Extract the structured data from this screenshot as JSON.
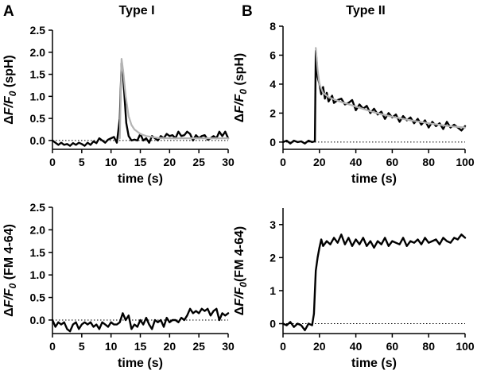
{
  "figure": {
    "panel_a_label": "A",
    "panel_b_label": "B",
    "title_left": "Type I",
    "title_right": "Type II"
  },
  "colors": {
    "trace": "#000000",
    "fit": "#b3b3b3",
    "axis": "#000000"
  },
  "chart_data": [
    {
      "id": "a-top",
      "type": "line",
      "xlabel": "time (s)",
      "ylabel": [
        "ΔF/F",
        "0",
        " (spH)"
      ],
      "xlim": [
        0,
        30
      ],
      "ylim": [
        -0.2,
        2.5
      ],
      "xticks": [
        0,
        5,
        10,
        15,
        20,
        25,
        30
      ],
      "yticks": [
        0.0,
        0.5,
        1.0,
        1.5,
        2.0,
        2.5
      ],
      "ytick_labels": [
        "0.0",
        "0.5",
        "1.0",
        "1.5",
        "2.0",
        "2.5"
      ],
      "baseline": 0,
      "series": [
        {
          "kind": "trace",
          "x": [
            0,
            0.5,
            1,
            1.5,
            2,
            2.5,
            3,
            3.5,
            4,
            4.5,
            5,
            5.5,
            6,
            6.5,
            7,
            7.5,
            8,
            8.5,
            9,
            9.5,
            10,
            10.5,
            11,
            11.5,
            11.8,
            12,
            12.3,
            12.6,
            13,
            13.5,
            14,
            14.5,
            15,
            15.5,
            16,
            16.5,
            17,
            17.5,
            18,
            18.5,
            19,
            19.5,
            20,
            20.5,
            21,
            21.5,
            22,
            22.5,
            23,
            23.5,
            24,
            24.5,
            25,
            25.5,
            26,
            26.5,
            27,
            27.5,
            28,
            28.5,
            29,
            29.5,
            30
          ],
          "y": [
            0,
            -0.05,
            -0.1,
            -0.05,
            -0.1,
            -0.08,
            -0.12,
            -0.06,
            -0.1,
            -0.05,
            -0.08,
            -0.12,
            -0.05,
            -0.1,
            -0.02,
            -0.06,
            0.05,
            0,
            -0.05,
            0.02,
            0.05,
            0.08,
            -0.05,
            0.5,
            1.75,
            1.6,
            1.0,
            0.4,
            0.1,
            0,
            0.02,
            0,
            0.15,
            0,
            0.05,
            -0.05,
            0.1,
            0.05,
            0,
            0.1,
            0.05,
            0.15,
            0.1,
            0.12,
            0.05,
            0.2,
            0.1,
            0.12,
            0.2,
            0.15,
            0,
            0.12,
            0.05,
            0.1,
            0.12,
            0.02,
            0.05,
            0.1,
            0.05,
            0.2,
            0.1,
            0.2,
            0.05
          ]
        },
        {
          "kind": "fit",
          "x": [
            11.5,
            11.8,
            12.1,
            12.5,
            13,
            13.5,
            14,
            15,
            16,
            18,
            20,
            24,
            30
          ],
          "y": [
            0.05,
            1.85,
            1.55,
            1.0,
            0.55,
            0.35,
            0.25,
            0.15,
            0.1,
            0.06,
            0.05,
            0.05,
            0.05
          ]
        }
      ]
    },
    {
      "id": "b-top",
      "type": "line",
      "xlabel": "time (s)",
      "ylabel": [
        "ΔF/F",
        "0",
        " (spH)"
      ],
      "xlim": [
        0,
        100
      ],
      "ylim": [
        -0.5,
        8
      ],
      "xticks": [
        0,
        20,
        40,
        60,
        80,
        100
      ],
      "yticks": [
        0,
        2,
        4,
        6,
        8
      ],
      "ytick_labels": [
        "0",
        "2",
        "4",
        "6",
        "8"
      ],
      "baseline": 0,
      "series": [
        {
          "kind": "trace",
          "x": [
            0,
            2,
            4,
            6,
            8,
            10,
            12,
            14,
            16,
            17.5,
            18,
            18.5,
            19,
            20,
            21,
            22,
            23,
            24,
            25,
            26,
            27,
            28,
            30,
            32,
            34,
            36,
            38,
            40,
            42,
            44,
            46,
            48,
            50,
            52,
            54,
            56,
            58,
            60,
            62,
            64,
            66,
            68,
            70,
            72,
            74,
            76,
            78,
            80,
            82,
            84,
            86,
            88,
            90,
            92,
            94,
            96,
            98,
            100
          ],
          "y": [
            0,
            0.1,
            -0.1,
            0.1,
            0,
            0.05,
            -0.1,
            0.1,
            0,
            0.05,
            6.3,
            5.5,
            4.5,
            4.0,
            3.3,
            3.8,
            3.0,
            3.4,
            2.8,
            3.0,
            3.2,
            2.7,
            2.9,
            3.0,
            2.6,
            2.7,
            2.9,
            2.2,
            2.6,
            2.3,
            2.5,
            2.0,
            2.3,
            1.9,
            2.1,
            1.6,
            2.0,
            1.7,
            1.9,
            1.4,
            1.8,
            1.5,
            1.7,
            1.3,
            1.6,
            1.2,
            1.5,
            1.0,
            1.4,
            1.1,
            1.3,
            0.9,
            1.4,
            1.0,
            1.2,
            1.0,
            0.8,
            1.1
          ]
        },
        {
          "kind": "fit",
          "x": [
            18,
            19,
            20,
            22,
            25,
            30,
            35,
            40,
            50,
            60,
            70,
            80,
            90,
            100
          ],
          "y": [
            6.5,
            5.0,
            4.0,
            3.4,
            3.1,
            2.85,
            2.65,
            2.45,
            2.05,
            1.75,
            1.5,
            1.3,
            1.12,
            1.0
          ]
        }
      ]
    },
    {
      "id": "a-bottom",
      "type": "line",
      "xlabel": "time (s)",
      "ylabel": [
        "ΔF/F",
        "0",
        " (FM 4-64)"
      ],
      "xlim": [
        0,
        30
      ],
      "ylim": [
        -0.3,
        2.5
      ],
      "xticks": [
        0,
        5,
        10,
        15,
        20,
        25,
        30
      ],
      "yticks": [
        0.0,
        0.5,
        1.0,
        1.5,
        2.0,
        2.5
      ],
      "ytick_labels": [
        "0.0",
        "0.5",
        "1.0",
        "1.5",
        "2.0",
        "2.5"
      ],
      "baseline": 0,
      "series": [
        {
          "kind": "trace",
          "x": [
            0,
            0.5,
            1,
            1.5,
            2,
            2.5,
            3,
            3.5,
            4,
            4.5,
            5,
            5.5,
            6,
            6.5,
            7,
            7.5,
            8,
            8.5,
            9,
            9.5,
            10,
            10.5,
            11,
            11.5,
            12,
            12.5,
            13,
            13.5,
            14,
            14.5,
            15,
            15.5,
            16,
            16.5,
            17,
            17.5,
            18,
            18.5,
            19,
            19.5,
            20,
            20.5,
            21,
            21.5,
            22,
            22.5,
            23,
            23.5,
            24,
            24.5,
            25,
            25.5,
            26,
            26.5,
            27,
            27.5,
            28,
            28.5,
            29,
            29.5,
            30
          ],
          "y": [
            0,
            -0.15,
            -0.05,
            -0.1,
            -0.05,
            -0.2,
            -0.25,
            -0.1,
            -0.05,
            -0.2,
            -0.1,
            -0.05,
            -0.1,
            -0.05,
            -0.15,
            -0.1,
            -0.2,
            -0.05,
            -0.1,
            -0.15,
            -0.05,
            -0.1,
            -0.1,
            -0.05,
            0.15,
            0,
            0.1,
            -0.2,
            -0.1,
            -0.15,
            0,
            -0.1,
            0.05,
            -0.1,
            -0.2,
            0,
            -0.05,
            0,
            -0.15,
            0.05,
            -0.05,
            0,
            0,
            -0.05,
            0.05,
            0,
            0.1,
            0.25,
            0.15,
            0.2,
            0.15,
            0.25,
            0.2,
            0.25,
            0.1,
            0.2,
            0.25,
            0,
            0.15,
            0.1,
            0.15
          ]
        }
      ]
    },
    {
      "id": "b-bottom",
      "type": "line",
      "xlabel": "time (s)",
      "ylabel": [
        "ΔF/F",
        "0",
        "(FM 4-64)"
      ],
      "xlim": [
        0,
        100
      ],
      "ylim": [
        -0.3,
        3.5
      ],
      "xticks": [
        0,
        20,
        40,
        60,
        80,
        100
      ],
      "yticks": [
        0,
        1,
        2,
        3
      ],
      "ytick_labels": [
        "0",
        "1",
        "2",
        "3"
      ],
      "baseline": 0,
      "series": [
        {
          "kind": "trace",
          "x": [
            0,
            2,
            4,
            6,
            8,
            10,
            12,
            14,
            16,
            17,
            18,
            19,
            20,
            21,
            22,
            24,
            26,
            28,
            30,
            32,
            34,
            36,
            38,
            40,
            42,
            44,
            46,
            48,
            50,
            52,
            54,
            56,
            58,
            60,
            62,
            64,
            66,
            68,
            70,
            72,
            74,
            76,
            78,
            80,
            82,
            84,
            86,
            88,
            90,
            92,
            94,
            96,
            98,
            100
          ],
          "y": [
            0,
            -0.05,
            0.05,
            -0.1,
            0,
            -0.05,
            -0.2,
            0,
            -0.05,
            0.3,
            1.6,
            2.0,
            2.3,
            2.55,
            2.35,
            2.5,
            2.4,
            2.6,
            2.45,
            2.7,
            2.4,
            2.6,
            2.35,
            2.55,
            2.4,
            2.6,
            2.35,
            2.5,
            2.3,
            2.5,
            2.4,
            2.6,
            2.35,
            2.5,
            2.45,
            2.4,
            2.6,
            2.35,
            2.5,
            2.45,
            2.55,
            2.4,
            2.6,
            2.45,
            2.5,
            2.55,
            2.4,
            2.6,
            2.5,
            2.45,
            2.6,
            2.55,
            2.7,
            2.6
          ]
        }
      ]
    }
  ]
}
